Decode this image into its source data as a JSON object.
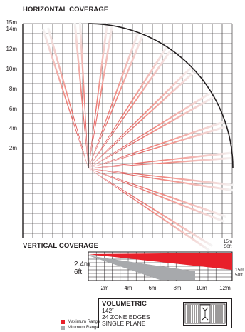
{
  "horizontal": {
    "title": "HORIZONTAL COVERAGE",
    "y_labels": [
      "15m",
      "14m",
      "12m",
      "10m",
      "8m",
      "6m",
      "4m",
      "2m"
    ]
  },
  "vertical": {
    "title": "VERTICAL COVERAGE",
    "mount_height": "2.4m",
    "mount_height_ft": "6ft",
    "top_range": [
      "15m",
      "50ft"
    ],
    "side_range": [
      "15m",
      "50ft"
    ],
    "x_labels": [
      "2m",
      "4m",
      "6m",
      "8m",
      "10m",
      "12m"
    ]
  },
  "lens": {
    "title": "VOLUMETRIC",
    "angle": "142˚",
    "zones": "24 ZONE EDGES",
    "plane": "SINGLE PLANE"
  },
  "legend": {
    "max": "Maximum Range",
    "min": "Minimum Range",
    "max_color": "#e8202a",
    "min_color": "#a7a9ac"
  },
  "chart_data": {
    "type": "coverage-diagram",
    "horizontal_coverage": {
      "origin": "sensor apex",
      "max_range_m": 15,
      "coverage_angle_deg": 142,
      "zone_edges": 24,
      "y_ticks_m": [
        2,
        4,
        6,
        8,
        10,
        12,
        14,
        15
      ]
    },
    "vertical_coverage": {
      "mount_height_m": 2.4,
      "max_range_m": 15,
      "x_ticks_m": [
        2,
        4,
        6,
        8,
        10,
        12
      ]
    }
  }
}
